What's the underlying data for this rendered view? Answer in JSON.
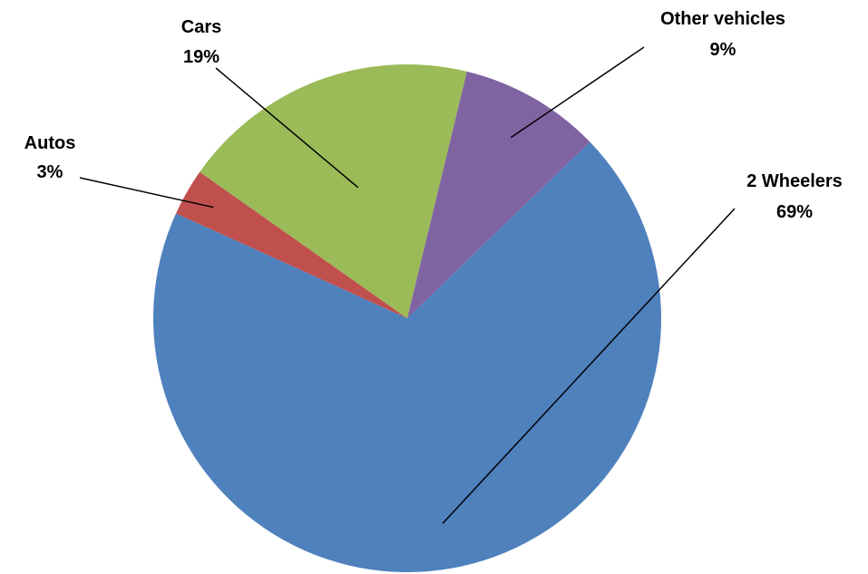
{
  "chart_data": {
    "type": "pie",
    "slices": [
      {
        "label": "2 Wheelers",
        "value": 69,
        "value_label": "69%",
        "color": "#4F81BD"
      },
      {
        "label": "Autos",
        "value": 3,
        "value_label": "3%",
        "color": "#C0504D"
      },
      {
        "label": "Cars",
        "value": 19,
        "value_label": "19%",
        "color": "#9BBB59"
      },
      {
        "label": "Other vehicles",
        "value": 9,
        "value_label": "9%",
        "color": "#8064A2"
      }
    ]
  }
}
